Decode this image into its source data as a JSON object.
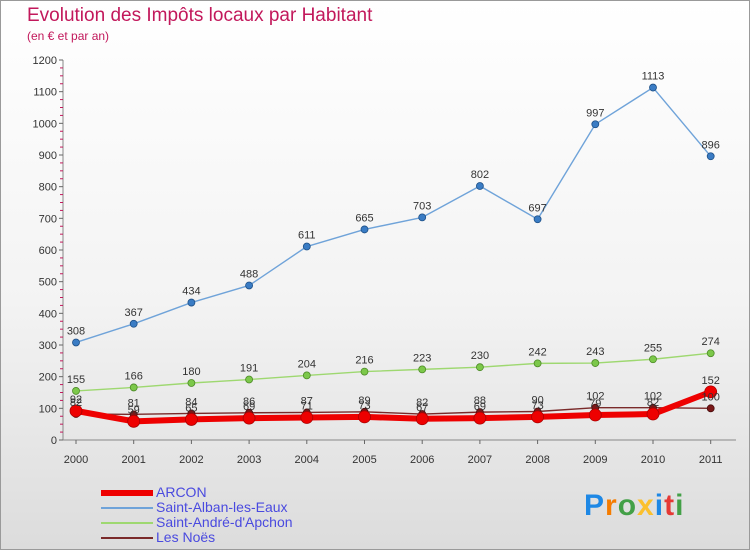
{
  "header": {
    "title": "Evolution des Impôts locaux par Habitant",
    "subtitle": "(en € et par an)"
  },
  "logo": {
    "text": "Proxiti",
    "letters": [
      "P",
      "r",
      "o",
      "x",
      "i",
      "t",
      "i"
    ],
    "colors": [
      "#1e88e5",
      "#f57c00",
      "#43a047",
      "#fbc02d",
      "#1e88e5",
      "#e53935",
      "#43a047"
    ]
  },
  "chart_data": {
    "type": "line",
    "title": "Evolution des Impôts locaux par Habitant",
    "subtitle": "(en € et par an)",
    "xlabel": "",
    "ylabel": "",
    "categories": [
      "2000",
      "2001",
      "2002",
      "2003",
      "2004",
      "2005",
      "2006",
      "2007",
      "2008",
      "2009",
      "2010",
      "2011"
    ],
    "ylim": [
      0,
      1200
    ],
    "yticks": [
      0,
      100,
      200,
      300,
      400,
      500,
      600,
      700,
      800,
      900,
      1000,
      1100,
      1200
    ],
    "grid": false,
    "legend_position": "bottom-left",
    "series": [
      {
        "name": "ARCON",
        "color": "#ee0000",
        "values": [
          92,
          59,
          65,
          69,
          71,
          73,
          67,
          69,
          73,
          79,
          82,
          152
        ],
        "labels": [
          "92",
          "59",
          "65",
          "69",
          "71",
          "73",
          "67",
          "69",
          "73",
          "79",
          "82",
          "152"
        ]
      },
      {
        "name": "Saint-Alban-les-Eaux",
        "color": "#6fa3d9",
        "values": [
          308,
          367,
          434,
          488,
          611,
          665,
          703,
          802,
          697,
          997,
          1113,
          896
        ],
        "labels": [
          "308",
          "367",
          "434",
          "488",
          "611",
          "665",
          "703",
          "802",
          "697",
          "997",
          "1113",
          "896"
        ]
      },
      {
        "name": "Saint-André-d'Apchon",
        "color": "#9ed870",
        "values": [
          155,
          166,
          180,
          191,
          204,
          216,
          223,
          230,
          242,
          243,
          255,
          274
        ],
        "labels": [
          "155",
          "166",
          "180",
          "191",
          "204",
          "216",
          "223",
          "230",
          "242",
          "243",
          "255",
          "274"
        ]
      },
      {
        "name": "Les Noës",
        "color": "#7a2a2a",
        "values": [
          82,
          81,
          84,
          86,
          87,
          89,
          82,
          88,
          90,
          102,
          102,
          100
        ],
        "labels": [
          "82",
          "81",
          "84",
          "86",
          "87",
          "89",
          "82",
          "88",
          "90",
          "102",
          "102",
          "100"
        ]
      }
    ]
  }
}
